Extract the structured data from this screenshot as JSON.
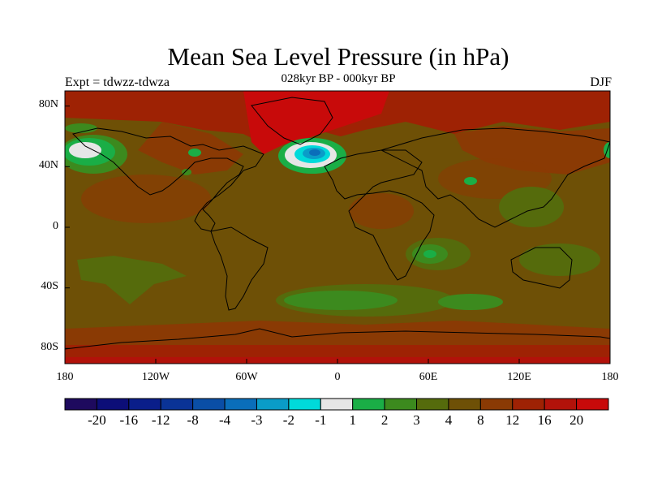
{
  "title": "Mean Sea Level Pressure (in hPa)",
  "subtitle_left": "Expt = tdwzz-tdwza",
  "subtitle_center": "028kyr BP - 000kyr BP",
  "subtitle_right": "DJF",
  "lat_ticks": [
    "80N",
    "40N",
    "0",
    "40S",
    "80S"
  ],
  "lon_ticks": [
    "180",
    "120W",
    "60W",
    "0",
    "60E",
    "120E",
    "180"
  ],
  "colorbar": {
    "colors": [
      "#1e0a5e",
      "#0c0e78",
      "#0a1e8a",
      "#0a3396",
      "#0a4ea6",
      "#0a6eba",
      "#0a9cc8",
      "#00dada",
      "#e6e6e6",
      "#1aae46",
      "#3c8a1e",
      "#556b0c",
      "#6e5006",
      "#8a3a04",
      "#9e2204",
      "#b2120a",
      "#c80a0a"
    ],
    "labels": [
      "-20",
      "-16",
      "-12",
      "-8",
      "-4",
      "-3",
      "-2",
      "-1",
      "1",
      "2",
      "3",
      "4",
      "8",
      "12",
      "16",
      "20"
    ]
  }
}
